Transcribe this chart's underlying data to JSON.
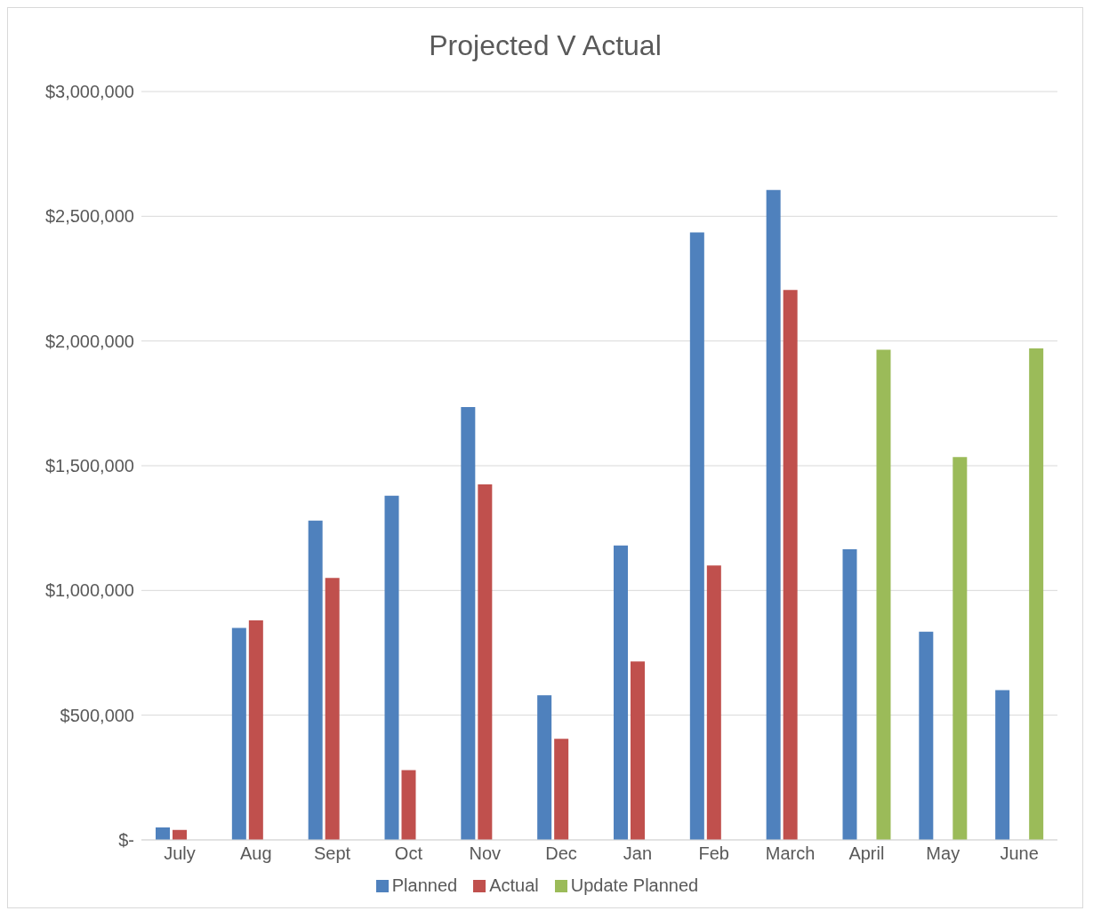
{
  "chart_data": {
    "type": "bar",
    "title": "Projected V Actual",
    "categories": [
      "July",
      "Aug",
      "Sept",
      "Oct",
      "Nov",
      "Dec",
      "Jan",
      "Feb",
      "March",
      "April",
      "May",
      "June"
    ],
    "series": [
      {
        "name": "Planned",
        "color": "#4f81bd",
        "values": [
          50000,
          850000,
          1280000,
          1380000,
          1735000,
          580000,
          1180000,
          2435000,
          2605000,
          1165000,
          835000,
          600000
        ]
      },
      {
        "name": "Actual",
        "color": "#c0504d",
        "values": [
          40000,
          880000,
          1050000,
          280000,
          1425000,
          405000,
          715000,
          1100000,
          2205000,
          null,
          null,
          null
        ]
      },
      {
        "name": "Update Planned",
        "color": "#9bbb59",
        "values": [
          null,
          null,
          null,
          null,
          null,
          null,
          null,
          null,
          null,
          1965000,
          1535000,
          1970000
        ]
      }
    ],
    "ylim": [
      0,
      3000000
    ],
    "yticks": [
      {
        "value": 0,
        "label": "$-"
      },
      {
        "value": 500000,
        "label": "$500,000"
      },
      {
        "value": 1000000,
        "label": "$1,000,000"
      },
      {
        "value": 1500000,
        "label": "$1,500,000"
      },
      {
        "value": 2000000,
        "label": "$2,000,000"
      },
      {
        "value": 2500000,
        "label": "$2,500,000"
      },
      {
        "value": 3000000,
        "label": "$3,000,000"
      }
    ],
    "grid": "y",
    "legend": "bottom"
  }
}
